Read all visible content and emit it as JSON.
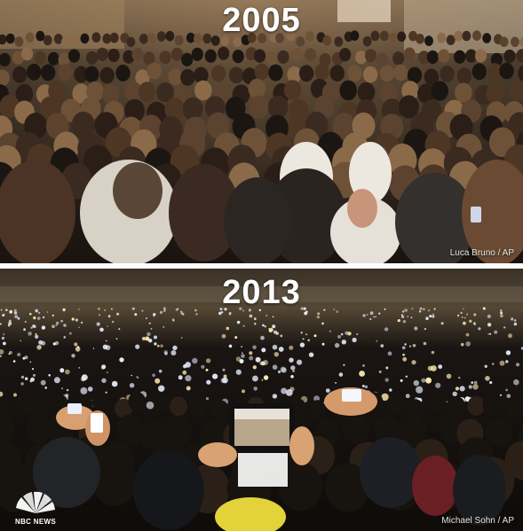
{
  "top_panel": {
    "year": "2005",
    "credit": "Luca Bruno / AP"
  },
  "bottom_panel": {
    "year": "2013",
    "credit": "Michael Sohn / AP",
    "logo_text": "NBC NEWS"
  },
  "colors": {
    "year_text": "#ffffff",
    "credit_text": "#e6e6e6",
    "divider": "#ffffff"
  }
}
